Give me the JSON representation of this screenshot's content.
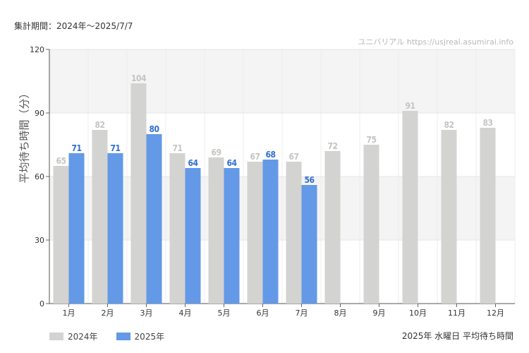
{
  "header": {
    "period": "集計期間：2024年～2025/7/7",
    "watermark": "ユニバリアル  https://usjreal.asumirai.info"
  },
  "footer": {
    "caption": "2025年 水曜日 平均待ち時間"
  },
  "chart_data": {
    "type": "bar",
    "ylabel": "平均待ち時間（分）",
    "xlabel": "",
    "ylim": [
      0,
      120
    ],
    "yticks": [
      0,
      30,
      60,
      90,
      120
    ],
    "categories": [
      "1月",
      "2月",
      "3月",
      "4月",
      "5月",
      "6月",
      "7月",
      "8月",
      "9月",
      "10月",
      "11月",
      "12月"
    ],
    "series": [
      {
        "name": "2024年",
        "color": "#d3d3d1",
        "label_color": "#c4c4c2",
        "values": [
          65,
          82,
          104,
          71,
          69,
          67,
          67,
          72,
          75,
          91,
          82,
          83
        ]
      },
      {
        "name": "2025年",
        "color": "#6399e6",
        "label_color": "#2f6fcf",
        "values": [
          71,
          71,
          80,
          64,
          64,
          68,
          56,
          null,
          null,
          null,
          null,
          null
        ]
      }
    ],
    "grid": true,
    "legend_position": "bottom-left"
  }
}
